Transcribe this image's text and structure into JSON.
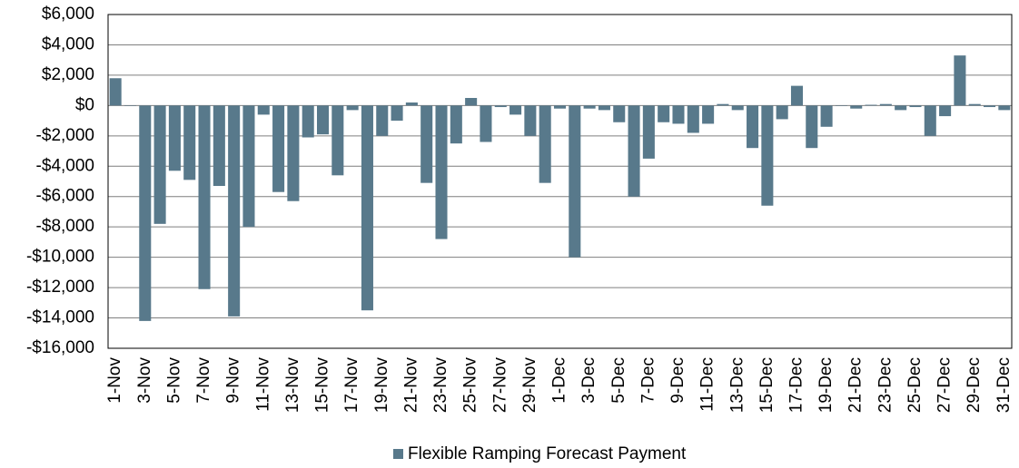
{
  "chart_data": {
    "type": "bar",
    "categories": [
      "1-Nov",
      null,
      "3-Nov",
      null,
      "5-Nov",
      null,
      "7-Nov",
      null,
      "9-Nov",
      null,
      "11-Nov",
      null,
      "13-Nov",
      null,
      "15-Nov",
      null,
      "17-Nov",
      null,
      "19-Nov",
      null,
      "21-Nov",
      null,
      "23-Nov",
      null,
      "25-Nov",
      null,
      "27-Nov",
      null,
      "29-Nov",
      null,
      "1-Dec",
      null,
      "3-Dec",
      null,
      "5-Dec",
      null,
      "7-Dec",
      null,
      "9-Dec",
      null,
      "11-Dec",
      null,
      "13-Dec",
      null,
      "15-Dec",
      null,
      "17-Dec",
      null,
      "19-Dec",
      null,
      "21-Dec",
      null,
      "23-Dec",
      null,
      "25-Dec",
      null,
      "27-Dec",
      null,
      "29-Dec",
      null,
      "31-Dec"
    ],
    "series": [
      {
        "name": "Flexible Ramping Forecast Payment",
        "color": "#58798b",
        "values": [
          1800,
          0,
          -14200,
          -7800,
          -4300,
          -4900,
          -12100,
          -5300,
          -13900,
          -8000,
          -600,
          -5700,
          -6300,
          -2100,
          -1900,
          -4600,
          -300,
          -13500,
          -2000,
          -1000,
          200,
          -5100,
          -8800,
          -2500,
          500,
          -2400,
          -100,
          -600,
          -2000,
          -5100,
          -200,
          -10000,
          -200,
          -300,
          -1100,
          -6000,
          -3500,
          -1100,
          -1200,
          -1800,
          -1200,
          100,
          -300,
          -2800,
          -6600,
          -900,
          1300,
          -2800,
          -1400,
          0,
          -200,
          50,
          100,
          -300,
          -100,
          -2000,
          -700,
          3300,
          100,
          -100,
          -300
        ]
      }
    ],
    "ylim": [
      -16000,
      6000
    ],
    "yticks": [
      {
        "value": -16000,
        "label": "-$16,000"
      },
      {
        "value": -14000,
        "label": "-$14,000"
      },
      {
        "value": -12000,
        "label": "-$12,000"
      },
      {
        "value": -10000,
        "label": "-$10,000"
      },
      {
        "value": -8000,
        "label": "-$8,000"
      },
      {
        "value": -6000,
        "label": "-$6,000"
      },
      {
        "value": -4000,
        "label": "-$4,000"
      },
      {
        "value": -2000,
        "label": "-$2,000"
      },
      {
        "value": 0,
        "label": "$0"
      },
      {
        "value": 2000,
        "label": "$2,000"
      },
      {
        "value": 4000,
        "label": "$4,000"
      },
      {
        "value": 6000,
        "label": "$6,000"
      }
    ],
    "grid": true,
    "legend": "bottom"
  }
}
